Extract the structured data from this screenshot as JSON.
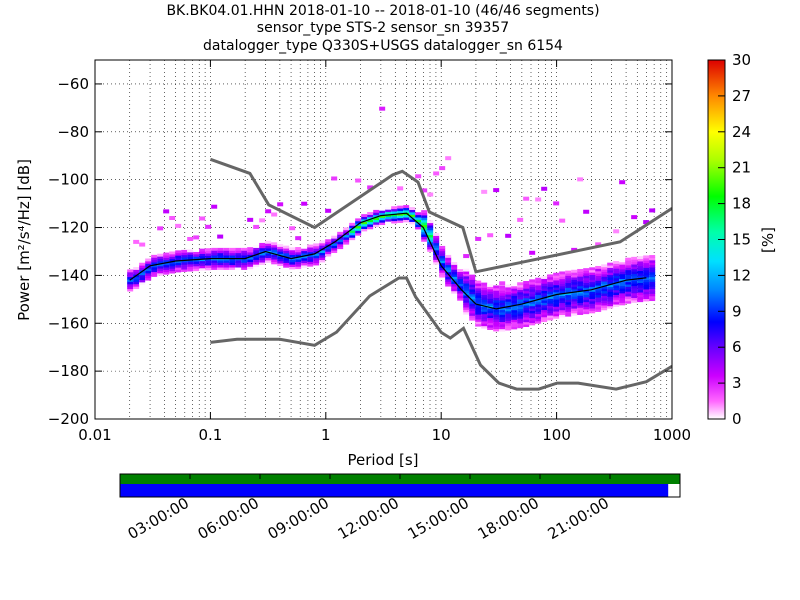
{
  "figure": {
    "title_lines": [
      "BK.BK04.01.HHN   2018-01-10 -- 2018-01-10  (46/46 segments)",
      "sensor_type STS-2 sensor_sn 39357",
      "datalogger_type Q330S+USGS datalogger_sn 6154"
    ]
  },
  "chart_data": {
    "type": "heatmap",
    "xlabel": "Period [s]",
    "ylabel": "Power [m²/s⁴/Hz] [dB]",
    "xscale": "log",
    "xlim": [
      0.01,
      1000
    ],
    "ylim": [
      -200,
      -50
    ],
    "xticks": [
      0.01,
      0.1,
      1,
      10,
      100,
      1000
    ],
    "xtick_labels": [
      "0.01",
      "0.1",
      "1",
      "10",
      "100",
      "1000"
    ],
    "yticks": [
      -60,
      -80,
      -100,
      -120,
      -140,
      -160,
      -180,
      -200
    ],
    "ytick_labels": [
      "−60",
      "−80",
      "−100",
      "−120",
      "−140",
      "−160",
      "−180",
      "−200"
    ],
    "grid": true,
    "colorbar": {
      "label": "[%]",
      "range": [
        0,
        30
      ],
      "ticks": [
        0,
        3,
        6,
        9,
        12,
        15,
        18,
        21,
        24,
        27,
        30
      ]
    },
    "mean_curve": {
      "x": [
        0.02,
        0.03,
        0.05,
        0.1,
        0.2,
        0.3,
        0.5,
        0.8,
        1.2,
        2,
        3,
        5,
        7,
        10,
        15,
        20,
        30,
        50,
        100,
        200,
        400,
        600
      ],
      "y": [
        -142,
        -136,
        -134,
        -133,
        -133,
        -130,
        -133,
        -131,
        -126,
        -118,
        -115,
        -114,
        -120,
        -136,
        -146,
        -152,
        -154,
        -152,
        -148,
        -146,
        -142,
        -141
      ]
    },
    "noise_model_high": {
      "x": [
        0.1,
        0.22,
        0.32,
        0.8,
        3.8,
        4.6,
        6.3,
        7.9,
        15.4,
        20,
        354.8,
        1000
      ],
      "y": [
        -91.5,
        -97.4,
        -110.5,
        -120,
        -98,
        -96.5,
        -101,
        -113.5,
        -120,
        -138.5,
        -126,
        -112
      ]
    },
    "noise_model_low": {
      "x": [
        0.1,
        0.17,
        0.4,
        0.8,
        1.24,
        2.4,
        4.3,
        5,
        6,
        10,
        12,
        15.6,
        21.9,
        31.6,
        45,
        70,
        101,
        154,
        328,
        600,
        1000
      ],
      "y": [
        -168,
        -166.7,
        -166.7,
        -169.2,
        -163.7,
        -148.6,
        -141.1,
        -141.1,
        -149,
        -163.8,
        -166.2,
        -162.1,
        -177.5,
        -185,
        -187.5,
        -187.5,
        -185,
        -185,
        -187.5,
        -184.4,
        -178
      ]
    }
  },
  "timeline": {
    "ticks": [
      "03:00:00",
      "06:00:00",
      "09:00:00",
      "12:00:00",
      "15:00:00",
      "18:00:00",
      "21:00:00"
    ],
    "data_fraction": 0.979,
    "data_color": "#0000ff",
    "segments_color": "#008000"
  }
}
